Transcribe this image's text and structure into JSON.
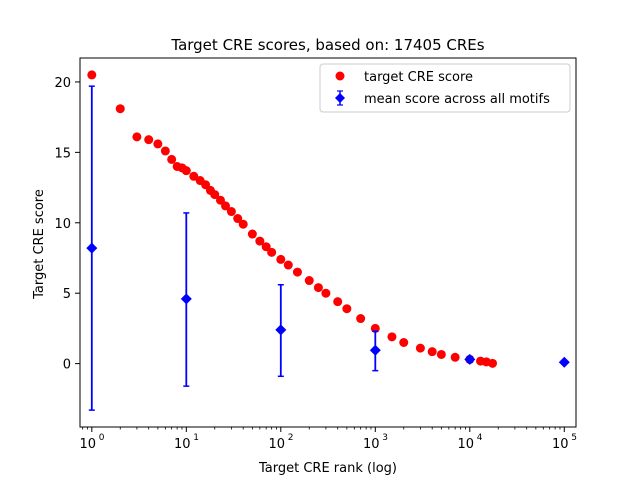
{
  "chart_data": {
    "type": "scatter",
    "title": "Target CRE scores, based on: 17405 CREs",
    "xlabel": "Target CRE rank (log)",
    "ylabel": "Target CRE score",
    "xscale": "log",
    "xlim": [
      0.75,
      133000
    ],
    "ylim": [
      -4.5,
      21.7
    ],
    "grid": false,
    "legend_position": "upper right",
    "x_ticks": [
      {
        "base": "10",
        "exp": "0",
        "value": 1
      },
      {
        "base": "10",
        "exp": "1",
        "value": 10
      },
      {
        "base": "10",
        "exp": "2",
        "value": 100
      },
      {
        "base": "10",
        "exp": "3",
        "value": 1000
      },
      {
        "base": "10",
        "exp": "4",
        "value": 10000
      },
      {
        "base": "10",
        "exp": "5",
        "value": 100000
      }
    ],
    "y_ticks": [
      "0",
      "5",
      "10",
      "15",
      "20"
    ],
    "y_tick_values": [
      0,
      5,
      10,
      15,
      20
    ],
    "series": [
      {
        "name": "target CRE score",
        "marker": "circle",
        "color": "#ff0000",
        "points": [
          [
            1,
            20.5
          ],
          [
            2,
            18.1
          ],
          [
            3,
            16.1
          ],
          [
            4,
            15.9
          ],
          [
            5,
            15.6
          ],
          [
            6,
            15.1
          ],
          [
            7,
            14.5
          ],
          [
            8,
            14.0
          ],
          [
            9,
            13.9
          ],
          [
            10,
            13.7
          ],
          [
            12,
            13.3
          ],
          [
            14,
            13.0
          ],
          [
            16,
            12.7
          ],
          [
            18,
            12.3
          ],
          [
            20,
            12.0
          ],
          [
            23,
            11.6
          ],
          [
            26,
            11.2
          ],
          [
            30,
            10.8
          ],
          [
            35,
            10.3
          ],
          [
            40,
            9.9
          ],
          [
            50,
            9.2
          ],
          [
            60,
            8.7
          ],
          [
            70,
            8.3
          ],
          [
            80,
            7.9
          ],
          [
            100,
            7.4
          ],
          [
            120,
            7.0
          ],
          [
            150,
            6.5
          ],
          [
            200,
            5.9
          ],
          [
            250,
            5.4
          ],
          [
            300,
            5.0
          ],
          [
            400,
            4.4
          ],
          [
            500,
            3.9
          ],
          [
            700,
            3.2
          ],
          [
            1000,
            2.5
          ],
          [
            1500,
            1.9
          ],
          [
            2000,
            1.5
          ],
          [
            3000,
            1.1
          ],
          [
            4000,
            0.85
          ],
          [
            5000,
            0.65
          ],
          [
            7000,
            0.45
          ],
          [
            10000,
            0.3
          ],
          [
            13000,
            0.18
          ],
          [
            15000,
            0.12
          ],
          [
            17405,
            0.02
          ]
        ]
      },
      {
        "name": "mean score across all motifs",
        "marker": "diamond",
        "color": "#0000ff",
        "points": [
          {
            "x": 1,
            "y": 8.2,
            "ylow": -3.3,
            "yhigh": 19.7
          },
          {
            "x": 10,
            "y": 4.6,
            "ylow": -1.6,
            "yhigh": 10.7
          },
          {
            "x": 100,
            "y": 2.4,
            "ylow": -0.9,
            "yhigh": 5.6
          },
          {
            "x": 1000,
            "y": 0.95,
            "ylow": -0.5,
            "yhigh": 2.3
          },
          {
            "x": 10000,
            "y": 0.3,
            "ylow": 0.1,
            "yhigh": 0.5
          },
          {
            "x": 100000,
            "y": 0.1,
            "ylow": 0.1,
            "yhigh": 0.1
          }
        ]
      }
    ]
  }
}
